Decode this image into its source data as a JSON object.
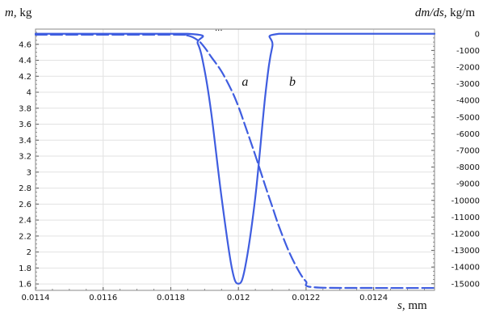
{
  "chart_data": {
    "type": "line",
    "x_label_var": "s,",
    "x_label_unit": " mm",
    "y_left_label_var": "m,",
    "y_left_label_unit": " kg",
    "y_right_label_var": "dm/ds,",
    "y_right_label_unit": " kg/m",
    "xlim": [
      0.0114,
      0.01258
    ],
    "ylim_left": [
      1.52,
      4.79
    ],
    "ylim_right": [
      -15400,
      280
    ],
    "x_ticks": [
      0.0114,
      0.0116,
      0.0118,
      0.012,
      0.0122,
      0.0124
    ],
    "x_tick_labels": [
      "0.0114",
      "0.0116",
      "0.0118",
      "0.012",
      "0.0122",
      "0.0124"
    ],
    "y_left_ticks": [
      1.6,
      1.8,
      2,
      2.2,
      2.4,
      2.6,
      2.8,
      3,
      3.2,
      3.4,
      3.6,
      3.8,
      4,
      4.2,
      4.4,
      4.6
    ],
    "y_left_tick_labels": [
      "1.6",
      "1.8",
      "2",
      "2.2",
      "2.4",
      "2.6",
      "2.8",
      "3",
      "3.2",
      "3.4",
      "3.6",
      "3.8",
      "4",
      "4.2",
      "4.4",
      "4.6"
    ],
    "y_right_ticks": [
      0,
      -1000,
      -2000,
      -3000,
      -4000,
      -5000,
      -6000,
      -7000,
      -8000,
      -9000,
      -10000,
      -11000,
      -12000,
      -13000,
      -14000,
      -15000
    ],
    "y_right_tick_labels": [
      "0",
      "-1000",
      "-2000",
      "-3000",
      "-4000",
      "-5000",
      "-6000",
      "-7000",
      "-8000",
      "-9000",
      "-10000",
      "-11000",
      "-12000",
      "-13000",
      "-14000",
      "-15000"
    ],
    "grid": true,
    "line_color": "#3f5de0",
    "series": [
      {
        "name": "a",
        "axis": "left",
        "style": "dashed",
        "x": [
          0.0114,
          0.0118,
          0.01185,
          0.01188,
          0.0119,
          0.01192,
          0.01195,
          0.01198,
          0.012,
          0.01202,
          0.01205,
          0.01208,
          0.0121,
          0.01212,
          0.01215,
          0.01218,
          0.0122,
          0.01222,
          0.0124,
          0.01258
        ],
        "y": [
          4.72,
          4.72,
          4.71,
          4.65,
          4.56,
          4.44,
          4.26,
          4.02,
          3.82,
          3.58,
          3.21,
          2.82,
          2.57,
          2.32,
          2.0,
          1.75,
          1.63,
          1.56,
          1.55,
          1.55
        ]
      },
      {
        "name": "b",
        "axis": "right",
        "style": "solid",
        "x": [
          0.0114,
          0.01185,
          0.01188,
          0.0119,
          0.01192,
          0.01195,
          0.01198,
          0.012,
          0.01202,
          0.01205,
          0.01208,
          0.0121,
          0.01212,
          0.0124,
          0.01258
        ],
        "y": [
          0,
          0,
          -600,
          -2200,
          -4800,
          -9800,
          -14000,
          -15000,
          -14000,
          -9800,
          -3600,
          -800,
          0,
          0,
          0
        ]
      }
    ],
    "annotations": [
      {
        "text": "a",
        "x": 0.01201,
        "y": 4.08
      },
      {
        "text": "b",
        "x": 0.01215,
        "y": 4.08
      }
    ],
    "top_marker": "..."
  }
}
